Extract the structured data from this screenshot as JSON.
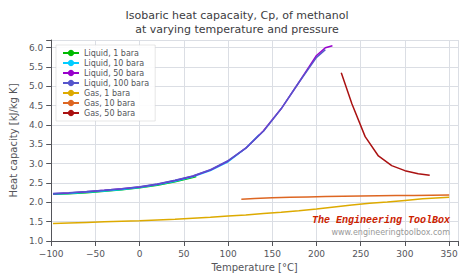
{
  "chart_data": {
    "type": "line",
    "title": "Isobaric heat capacaity, Cp, of methanol\nat varying temperature and pressure",
    "xlabel": "Temperature [°C]",
    "ylabel": "Heat capacity [kJ/kg K]",
    "xlim": [
      -100,
      360
    ],
    "ylim": [
      1.0,
      6.2
    ],
    "xticks": [
      {
        "value": -100,
        "label": "−100"
      },
      {
        "value": -50,
        "label": "−50"
      },
      0,
      50,
      100,
      150,
      200,
      250,
      300,
      350
    ],
    "yticks": [
      {
        "value": 1,
        "label": "1.0"
      },
      1.5,
      {
        "value": 2,
        "label": "2.0"
      },
      2.5,
      {
        "value": 3,
        "label": "3.0"
      },
      3.5,
      {
        "value": 4,
        "label": "4.0"
      },
      4.5,
      {
        "value": 5,
        "label": "5.0"
      },
      5.5,
      {
        "value": 6,
        "label": "6.0"
      }
    ],
    "grid": true,
    "legend": "upper left",
    "series": [
      {
        "name": "Liquid, 1 bara",
        "color": "#00bb00",
        "x": [
          -98,
          -80,
          -60,
          -40,
          -20,
          0,
          20,
          40,
          60,
          64
        ],
        "values": [
          2.21,
          2.225,
          2.25,
          2.285,
          2.325,
          2.375,
          2.44,
          2.53,
          2.64,
          2.67
        ]
      },
      {
        "name": "Liquid, 10 bara",
        "color": "#00ccff",
        "x": [
          -98,
          -80,
          -60,
          -40,
          -20,
          0,
          20,
          40,
          60,
          80,
          100,
          120,
          135
        ],
        "values": [
          2.215,
          2.23,
          2.26,
          2.295,
          2.335,
          2.385,
          2.455,
          2.545,
          2.66,
          2.82,
          3.05,
          3.4,
          3.75
        ]
      },
      {
        "name": "Liquid, 50 bara",
        "color": "#9900cc",
        "x": [
          -98,
          -80,
          -60,
          -40,
          -20,
          0,
          20,
          40,
          60,
          80,
          100,
          120,
          140,
          160,
          180,
          200,
          210,
          218
        ],
        "values": [
          2.225,
          2.245,
          2.275,
          2.31,
          2.35,
          2.4,
          2.47,
          2.565,
          2.675,
          2.835,
          3.07,
          3.4,
          3.85,
          4.42,
          5.1,
          5.8,
          6.0,
          6.05
        ]
      },
      {
        "name": "Liquid, 100 bara",
        "color": "#5555cc",
        "x": [
          -98,
          -80,
          -60,
          -40,
          -20,
          0,
          20,
          40,
          60,
          80,
          100,
          120,
          140,
          160,
          180,
          200,
          210
        ],
        "values": [
          2.23,
          2.25,
          2.28,
          2.315,
          2.355,
          2.405,
          2.475,
          2.57,
          2.685,
          2.845,
          3.08,
          3.4,
          3.84,
          4.42,
          5.1,
          5.75,
          5.95
        ]
      },
      {
        "name": "Gas, 1 bara",
        "color": "#ddaa00",
        "x": [
          -98,
          -80,
          -60,
          -40,
          -20,
          0,
          20,
          40,
          60,
          80,
          100,
          120,
          140,
          160,
          180,
          200,
          220,
          240,
          260,
          280,
          300,
          320,
          340,
          350
        ],
        "values": [
          1.45,
          1.465,
          1.48,
          1.495,
          1.51,
          1.525,
          1.545,
          1.565,
          1.59,
          1.615,
          1.645,
          1.675,
          1.71,
          1.745,
          1.785,
          1.83,
          1.88,
          1.93,
          1.975,
          2.01,
          2.05,
          2.09,
          2.12,
          2.135
        ]
      },
      {
        "name": "Gas, 10 bara",
        "color": "#dd6622",
        "x": [
          115,
          130,
          150,
          170,
          190,
          210,
          230,
          250,
          270,
          290,
          310,
          330,
          350
        ],
        "values": [
          2.08,
          2.1,
          2.12,
          2.13,
          2.14,
          2.15,
          2.16,
          2.165,
          2.17,
          2.175,
          2.18,
          2.185,
          2.19
        ]
      },
      {
        "name": "Gas, 50 bara",
        "color": "#aa1111",
        "x": [
          228,
          240,
          255,
          270,
          285,
          300,
          315,
          328
        ],
        "values": [
          5.35,
          4.55,
          3.7,
          3.2,
          2.95,
          2.82,
          2.74,
          2.7
        ]
      }
    ],
    "annotations": [
      {
        "text": "The Engineering ToolBox",
        "color": "#cc2200"
      },
      {
        "text": "www.engineeringtoolbox.com",
        "color": "#999999"
      }
    ]
  }
}
